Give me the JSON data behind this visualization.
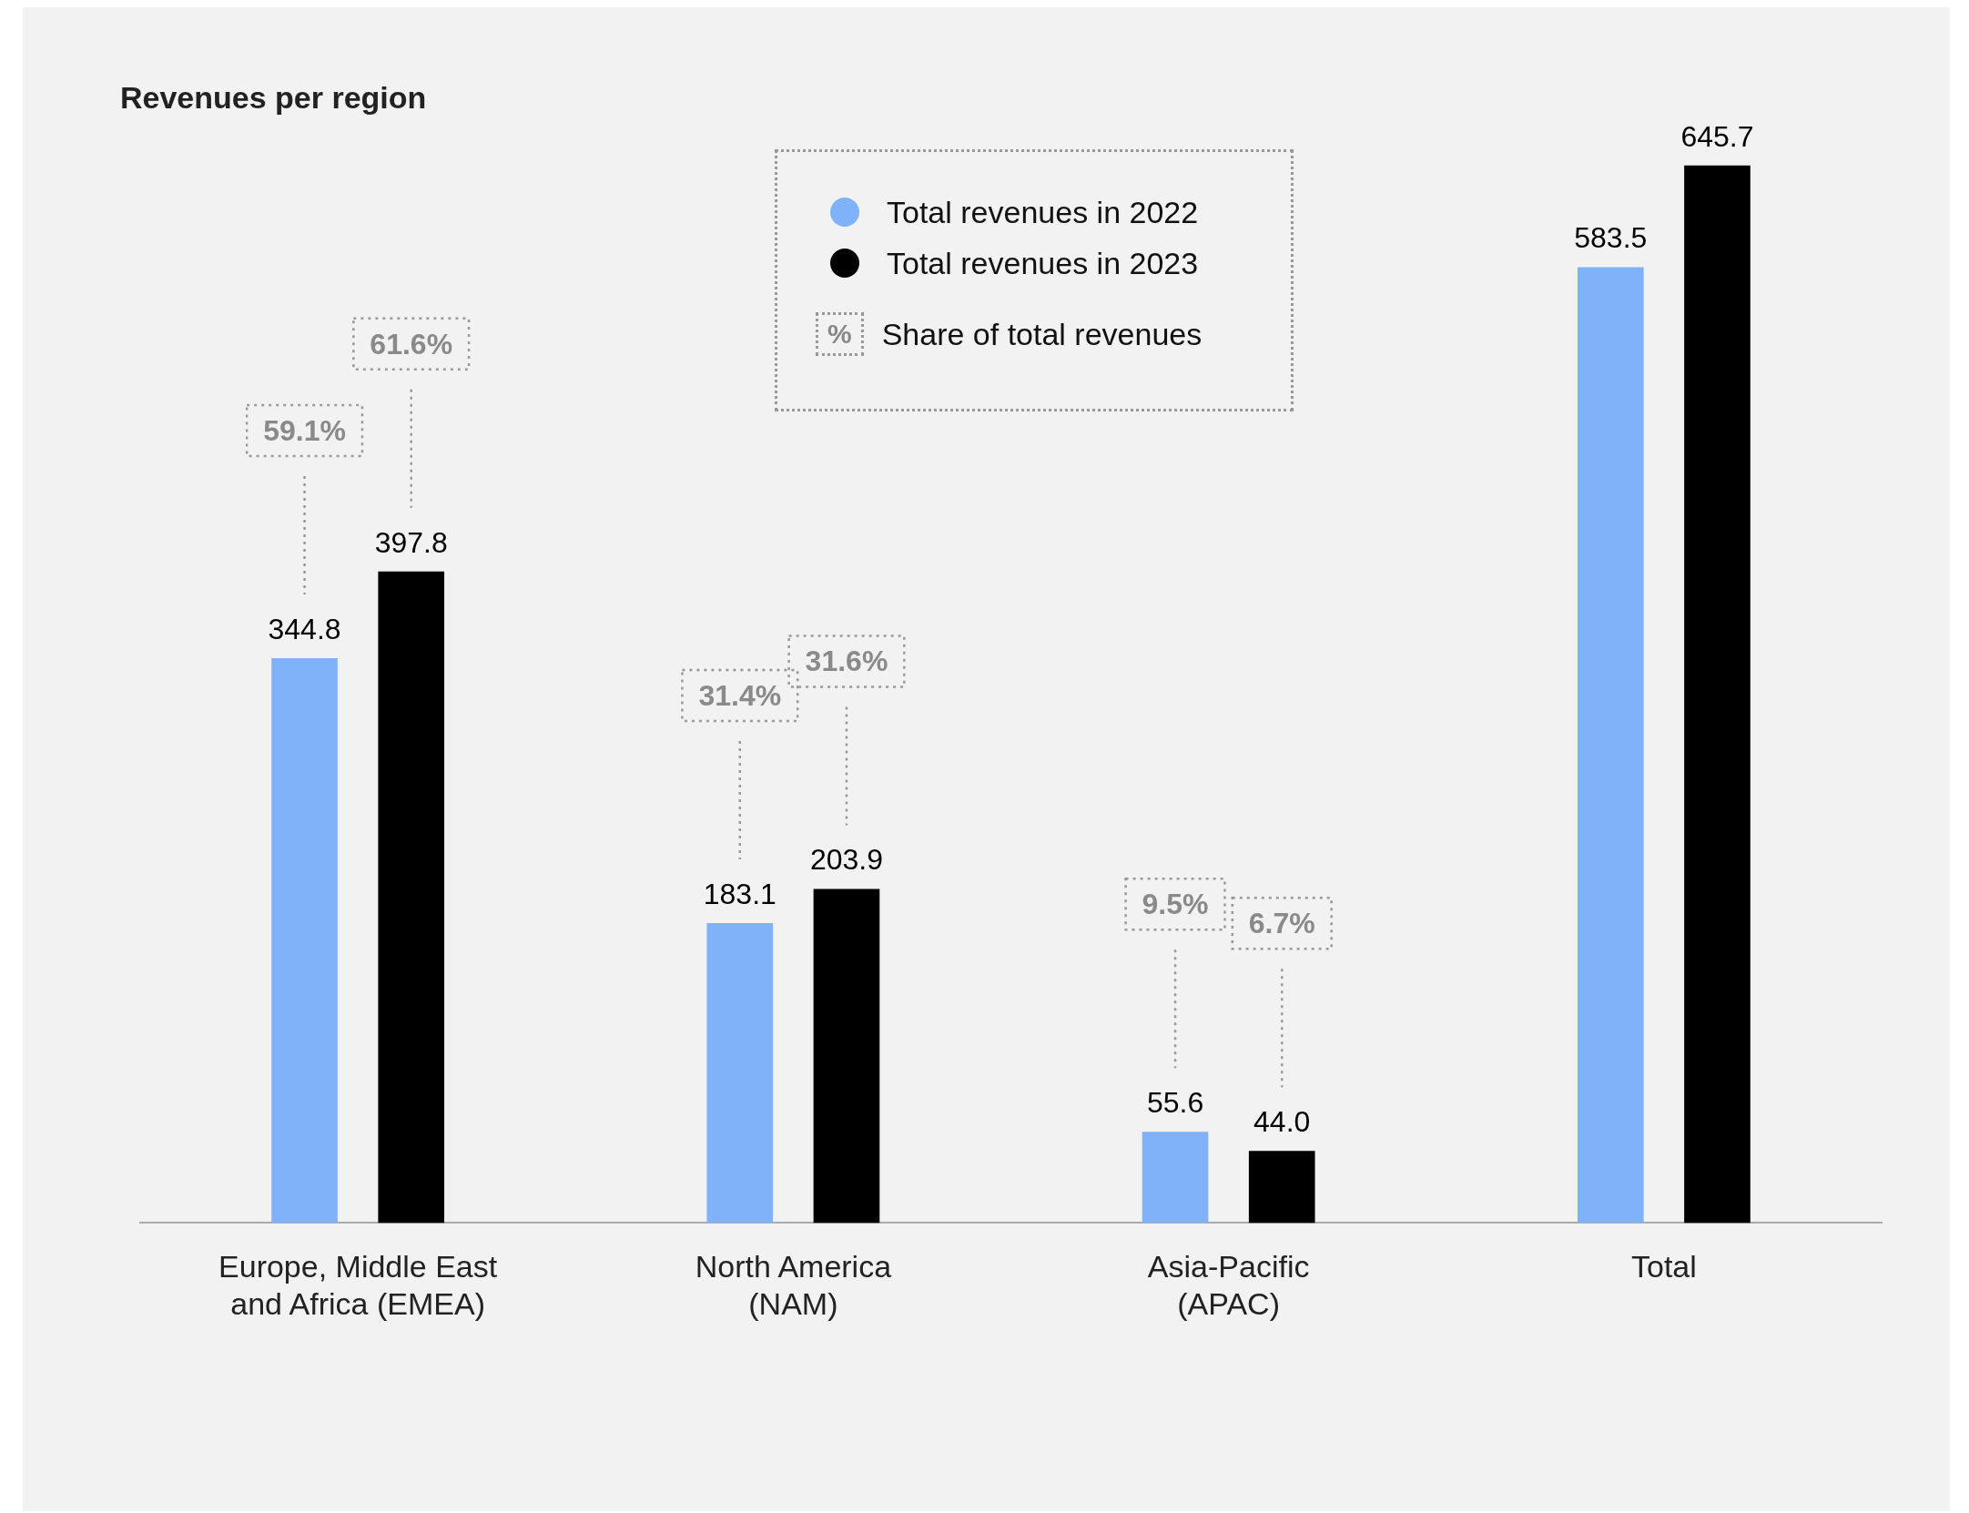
{
  "chart_data": {
    "type": "bar",
    "title": "Revenues per region",
    "categories": [
      "Europe, Middle East\nand Africa (EMEA)",
      "North America\n(NAM)",
      "Asia-Pacific\n(APAC)",
      "Total"
    ],
    "series": [
      {
        "name": "Total revenues in 2022",
        "color": "#7fb2f8",
        "values": [
          344.8,
          183.1,
          55.6,
          583.5
        ],
        "value_labels": [
          "344.8",
          "183.1",
          "55.6",
          "583.5"
        ]
      },
      {
        "name": "Total revenues in 2023",
        "color": "#000000",
        "values": [
          397.8,
          203.9,
          44.0,
          645.7
        ],
        "value_labels": [
          "397.8",
          "203.9",
          "44.0",
          "645.7"
        ]
      }
    ],
    "grid": false,
    "legend": "top",
    "annotations": [
      "59.1%",
      "61.6%",
      "31.4%",
      "31.6%",
      "9.5%",
      "6.7%",
      "%",
      "Share of total revenues"
    ]
  }
}
